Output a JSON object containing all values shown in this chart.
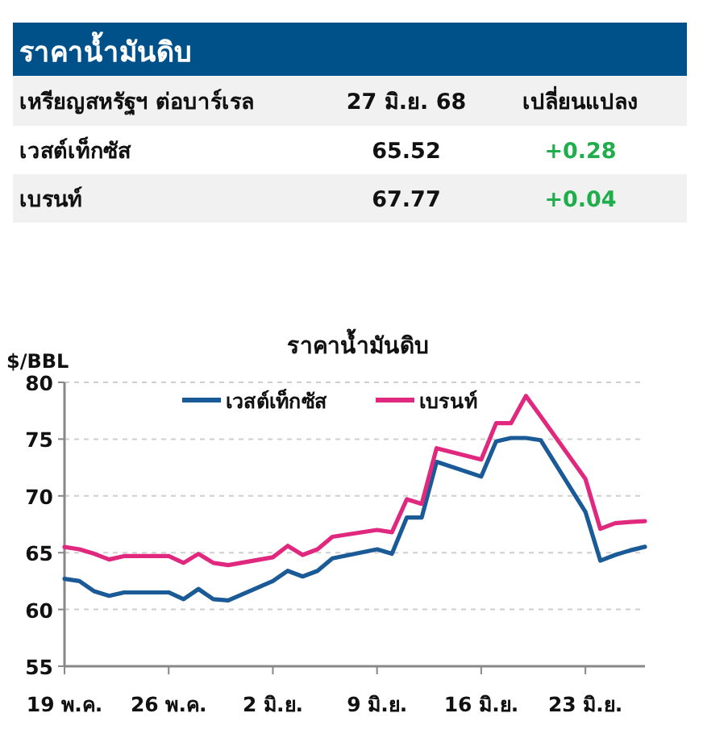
{
  "chart_data": [
    {
      "type": "other",
      "title": "ราคาน้ำมันดิบ",
      "annotations": [
        "เหรียญสหรัฐฯ ต่อบาร์เรล",
        "27 มิ.ย. 68",
        "เปลี่ยนแปลง",
        "เวสต์เท็กซัส",
        "65.52",
        "+0.28",
        "เบรนท์",
        "67.77",
        "+0.04"
      ]
    },
    {
      "type": "line",
      "title": "ราคาน้ำมันดิบ",
      "ylabel": "$/BBL",
      "x": [
        "--05-19",
        "--05-20",
        "--05-21",
        "--05-22",
        "--05-23",
        "--05-26",
        "--05-27",
        "--05-28",
        "--05-29",
        "--05-30",
        "--06-02",
        "--06-03",
        "--06-04",
        "--06-05",
        "--06-06",
        "--06-09",
        "--06-10",
        "--06-11",
        "--06-12",
        "--06-13",
        "--06-16",
        "--06-17",
        "--06-18",
        "--06-19",
        "--06-20",
        "--06-23",
        "--06-24",
        "--06-25",
        "--06-26",
        "--06-27"
      ],
      "series": [
        {
          "name": "เวสต์เท็กซัส",
          "color": "#1a5a96",
          "values": [
            62.7,
            62.5,
            61.6,
            61.2,
            61.5,
            61.5,
            60.9,
            61.8,
            60.9,
            60.8,
            62.5,
            63.4,
            62.9,
            63.4,
            64.5,
            65.3,
            64.9,
            68.1,
            68.1,
            73.0,
            71.7,
            74.8,
            75.1,
            75.1,
            74.9,
            68.6,
            64.3,
            64.8,
            65.2,
            65.52
          ]
        },
        {
          "name": "เบรนท์",
          "color": "#e0287f",
          "values": [
            65.5,
            65.3,
            64.9,
            64.4,
            64.7,
            64.7,
            64.1,
            64.9,
            64.1,
            63.9,
            64.6,
            65.6,
            64.8,
            65.3,
            66.4,
            67.0,
            66.8,
            69.7,
            69.3,
            74.2,
            73.2,
            76.4,
            76.4,
            78.8,
            77.0,
            71.5,
            67.1,
            67.6,
            67.7,
            67.77
          ]
        }
      ],
      "xlim": [
        "--05-19",
        "--06-27"
      ],
      "xticks": [
        {
          "value": "--05-19",
          "label": "19 พ.ค."
        },
        {
          "value": "--05-26",
          "label": "26 พ.ค."
        },
        {
          "value": "--06-02",
          "label": "2 มิ.ย."
        },
        {
          "value": "--06-09",
          "label": "9 มิ.ย."
        },
        {
          "value": "--06-16",
          "label": "16 มิ.ย."
        },
        {
          "value": "--06-23",
          "label": "23 มิ.ย."
        }
      ],
      "ylim": [
        55,
        80
      ],
      "yticks": [
        55,
        60,
        65,
        70,
        75,
        80
      ],
      "grid": "y",
      "legend": "top",
      "line_style": "solid",
      "marker": "none"
    }
  ]
}
